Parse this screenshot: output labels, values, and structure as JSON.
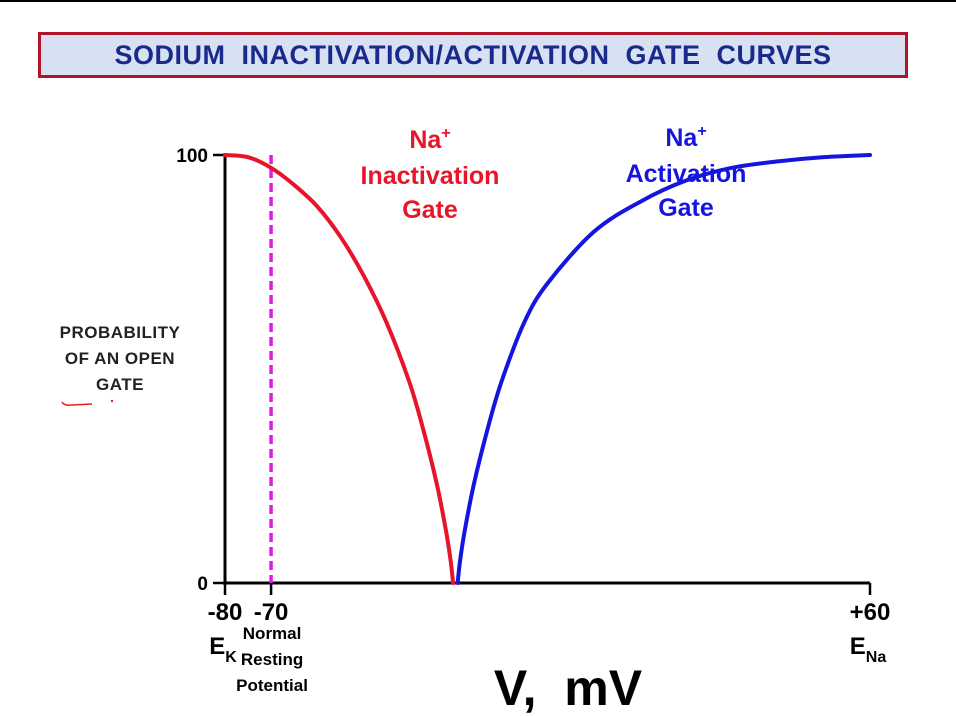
{
  "title": "SODIUM INACTIVATION/ACTIVATION GATE CURVES",
  "chart_data": {
    "type": "line",
    "xlabel": "V,  mV",
    "ylabel_lines": [
      "PROBABILITY",
      "OF AN OPEN",
      "GATE"
    ],
    "xlim": [
      -80,
      60
    ],
    "ylim": [
      0,
      100
    ],
    "x_ticks": [
      {
        "value": -80,
        "label": "-80",
        "sub_main": "E",
        "sub_script": "K"
      },
      {
        "value": -70,
        "label": "-70",
        "note_lines": [
          "Normal",
          "Resting",
          "Potential"
        ]
      },
      {
        "value": 60,
        "label": "+60",
        "sub_main": "E",
        "sub_script": "Na"
      }
    ],
    "y_ticks": [
      {
        "value": 0,
        "label": "0"
      },
      {
        "value": 100,
        "label": "100"
      }
    ],
    "reference_line": {
      "x": -70,
      "color": "#e619e6",
      "style": "dashed"
    },
    "series": [
      {
        "name_main": "Na",
        "name_sup": "+",
        "name_lines": [
          "Inactivation",
          "Gate"
        ],
        "color": "#e8142a",
        "points": [
          [
            -80,
            100
          ],
          [
            -75,
            99.5
          ],
          [
            -70,
            97
          ],
          [
            -65,
            93
          ],
          [
            -60,
            88
          ],
          [
            -55,
            81
          ],
          [
            -50,
            72
          ],
          [
            -45,
            61
          ],
          [
            -40,
            47
          ],
          [
            -37,
            36
          ],
          [
            -34,
            23
          ],
          [
            -32,
            12
          ],
          [
            -31,
            5
          ],
          [
            -30.5,
            0
          ]
        ]
      },
      {
        "name_main": "Na",
        "name_sup": "+",
        "name_lines": [
          "Activation",
          "Gate"
        ],
        "color": "#1515e0",
        "points": [
          [
            -29.5,
            0
          ],
          [
            -29,
            5
          ],
          [
            -28,
            12
          ],
          [
            -26,
            23
          ],
          [
            -23,
            36
          ],
          [
            -20,
            47
          ],
          [
            -15,
            61
          ],
          [
            -10,
            70
          ],
          [
            0,
            82
          ],
          [
            10,
            89
          ],
          [
            20,
            94
          ],
          [
            30,
            97
          ],
          [
            40,
            98.5
          ],
          [
            50,
            99.5
          ],
          [
            60,
            100
          ]
        ]
      }
    ]
  }
}
